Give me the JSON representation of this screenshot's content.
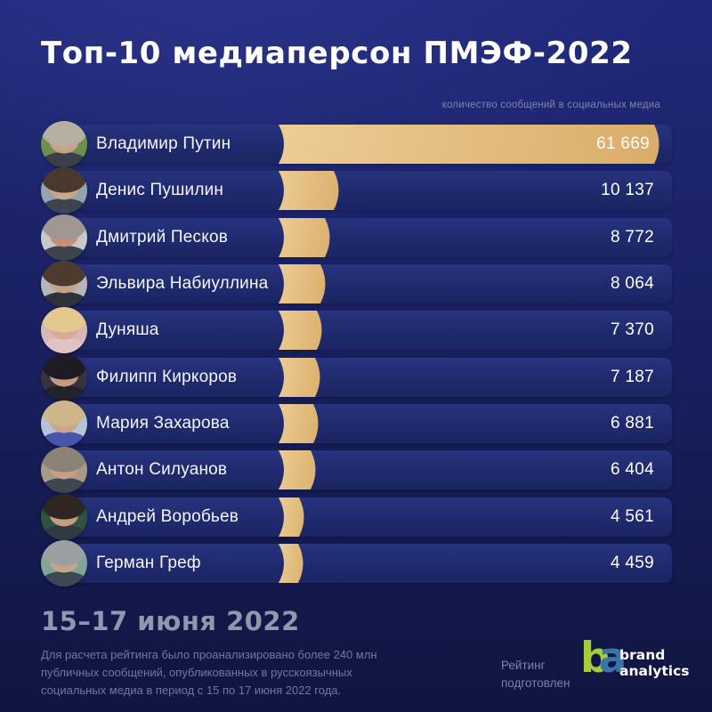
{
  "title": "Топ-10 медиаперсон ПМЭФ-2022",
  "subtitle": "количество сообщений в социальных медиа",
  "chart_data": {
    "type": "bar",
    "orientation": "horizontal",
    "title": "Топ-10 медиаперсон ПМЭФ-2022",
    "value_axis_label": "количество сообщений в социальных медиа",
    "categories": [
      "Владимир Путин",
      "Денис Пушилин",
      "Дмитрий Песков",
      "Эльвира Набиуллина",
      "Дуняша",
      "Филипп Киркоров",
      "Мария Захарова",
      "Антон Силуанов",
      "Андрей Воробьев",
      "Герман Греф"
    ],
    "values": [
      61669,
      10137,
      8772,
      8064,
      7370,
      7187,
      6881,
      6404,
      4561,
      4459
    ],
    "display_values": [
      "61 669",
      "10 137",
      "8 772",
      "8 064",
      "7 370",
      "7 187",
      "6 881",
      "6 404",
      "4 561",
      "4 459"
    ],
    "max_value": 61669,
    "bar_color": "#e2bb7c",
    "legend": false,
    "grid": false
  },
  "rows": [
    {
      "name": "Владимир Путин",
      "value": 61669,
      "display": "61 669",
      "avatar": {
        "bg": "#6f8f4e",
        "hair": "#b7b0a0",
        "skin": "#caa287",
        "body": "#3a3f49"
      }
    },
    {
      "name": "Денис Пушилин",
      "value": 10137,
      "display": "10 137",
      "avatar": {
        "bg": "#93a3b0",
        "hair": "#4a3a2e",
        "skin": "#c9a68c",
        "body": "#3c4450"
      }
    },
    {
      "name": "Дмитрий Песков",
      "value": 8772,
      "display": "8 772",
      "avatar": {
        "bg": "#c6c8ca",
        "hair": "#9e9890",
        "skin": "#c98f76",
        "body": "#3f434e"
      }
    },
    {
      "name": "Эльвира Набиуллина",
      "value": 8064,
      "display": "8 064",
      "avatar": {
        "bg": "#b5b6ba",
        "hair": "#4e3b30",
        "skin": "#c8a188",
        "body": "#2e3138"
      }
    },
    {
      "name": "Дуняша",
      "value": 7370,
      "display": "7 370",
      "avatar": {
        "bg": "#d7b8b4",
        "hair": "#e3c98e",
        "skin": "#d9ab96",
        "body": "#e0c4c4"
      }
    },
    {
      "name": "Филипп Киркоров",
      "value": 7187,
      "display": "7 187",
      "avatar": {
        "bg": "#35333e",
        "hair": "#1e1c22",
        "skin": "#c49a80",
        "body": "#23222b"
      }
    },
    {
      "name": "Мария Захарова",
      "value": 6881,
      "display": "6 881",
      "avatar": {
        "bg": "#b3c4d6",
        "hair": "#cdb689",
        "skin": "#cfa58c",
        "body": "#4756a8"
      }
    },
    {
      "name": "Антон Силуанов",
      "value": 6404,
      "display": "6 404",
      "avatar": {
        "bg": "#a89a88",
        "hair": "#8a8376",
        "skin": "#c99f83",
        "body": "#41454e"
      }
    },
    {
      "name": "Андрей Воробьев",
      "value": 4561,
      "display": "4 561",
      "avatar": {
        "bg": "#31523f",
        "hair": "#2e2620",
        "skin": "#c79d82",
        "body": "#303844"
      }
    },
    {
      "name": "Герман Греф",
      "value": 4459,
      "display": "4 459",
      "avatar": {
        "bg": "#7fa697",
        "hair": "#9aa0a2",
        "skin": "#c7a58a",
        "body": "#3c4854"
      }
    }
  ],
  "footer": {
    "heading": "15–17 июня 2022",
    "description": "Для расчета рейтинга было проанализировано более 240 млн\nпубличных сообщений, опубликованных в русскоязычных\nсоциальных медиа в период с 15 по 17 июня 2022 года.",
    "prepared_by": "Рейтинг\nподготовлен",
    "logo": {
      "letter_b": "b",
      "letter_a": "a",
      "text_line1": "brand",
      "text_line2": "analytics",
      "green": "#a5cd39",
      "blue": "#3b74a8"
    }
  },
  "colors": {
    "background_top": "#20287a",
    "background_bottom": "#101540",
    "row_panel": "#1f2a6e",
    "bar_gold": "#e2bb7c",
    "text_primary": "#ffffff",
    "text_muted": "#7c84ab"
  }
}
